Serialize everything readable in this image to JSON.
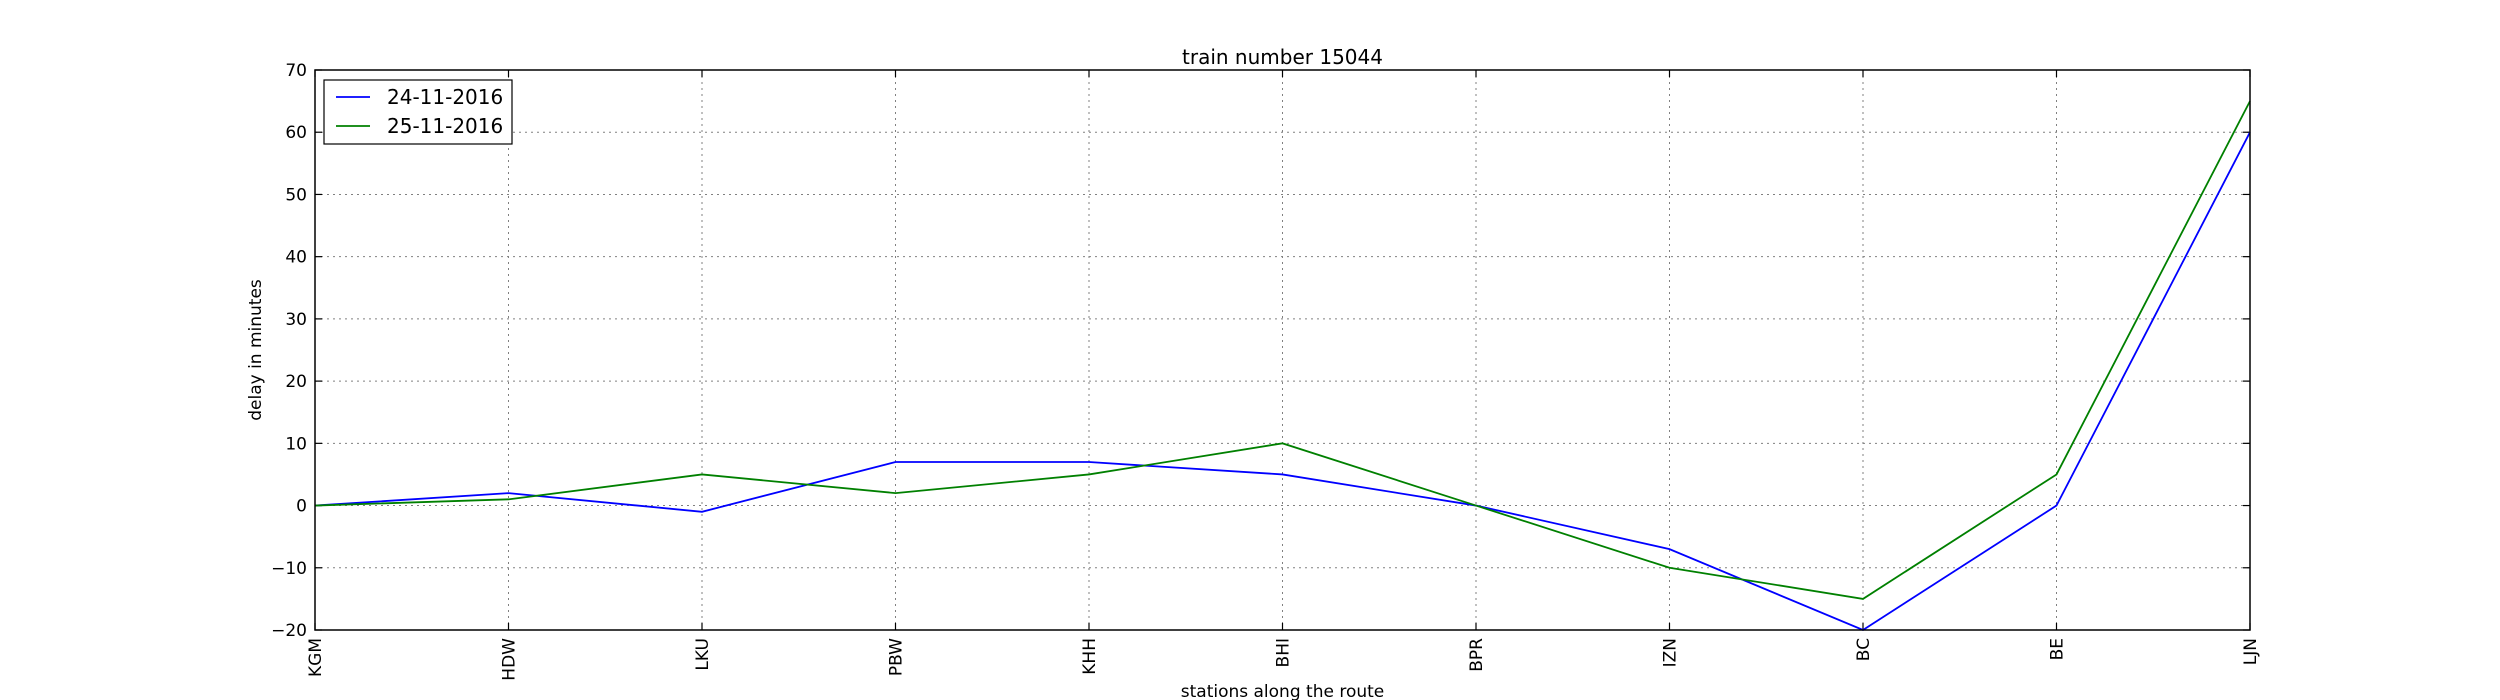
{
  "chart_data": {
    "type": "line",
    "title": "train number 15044",
    "xlabel": "stations along the route",
    "ylabel": "delay in minutes",
    "categories": [
      "KGM",
      "HDW",
      "LKU",
      "PBW",
      "KHH",
      "BHI",
      "BPR",
      "IZN",
      "BC",
      "BE",
      "LJN"
    ],
    "ylim": [
      -20,
      70
    ],
    "yticks": [
      -20,
      -10,
      0,
      10,
      20,
      30,
      40,
      50,
      60,
      70
    ],
    "grid": true,
    "legend_position": "top-left",
    "series": [
      {
        "name": "24-11-2016",
        "color": "#0000ff",
        "values": [
          0,
          2,
          -1,
          7,
          7,
          5,
          0,
          -7,
          -20,
          0,
          60
        ]
      },
      {
        "name": "25-11-2016",
        "color": "#008000",
        "values": [
          0,
          1,
          5,
          2,
          5,
          10,
          0,
          -10,
          -15,
          5,
          65
        ]
      }
    ]
  }
}
